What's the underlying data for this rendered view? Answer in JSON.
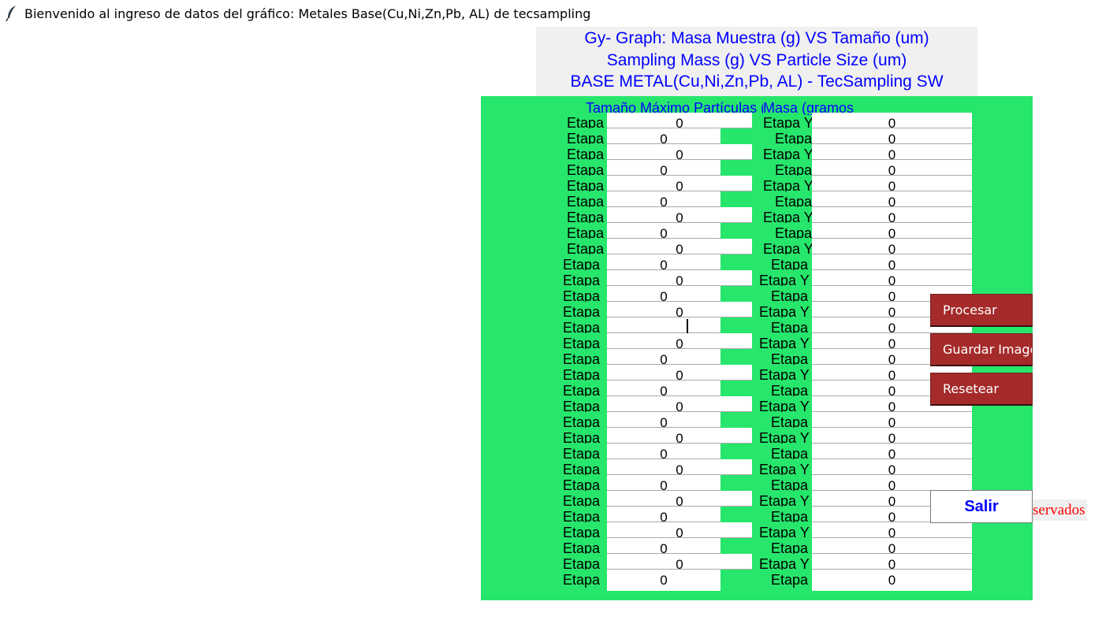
{
  "window": {
    "title": "Bienvenido al ingreso de datos del gráfico: Metales Base(Cu,Ni,Zn,Pb, AL) de tecsampling",
    "icon": "feather-icon"
  },
  "header": {
    "line1": "Gy- Graph: Masa Muestra (g) VS Tamaño (um)",
    "line2": "Sampling Mass (g) VS Particle Size (um)",
    "line3": "BASE METAL(Cu,Ni,Zn,Pb, AL) - TecSampling SW"
  },
  "columns": {
    "size_header": "Tamaño Máximo Partículas (micro",
    "mass_header": "Masa (gramos"
  },
  "rows": [
    {
      "x_label": "Etapa",
      "x_value": "0",
      "y_label": "Etapa Y",
      "y_value": "0"
    },
    {
      "x_label": "Etapa",
      "x_value": "0",
      "y_label": "Etapa",
      "y_value": "0"
    },
    {
      "x_label": "Etapa",
      "x_value": "0",
      "y_label": "Etapa Y",
      "y_value": "0"
    },
    {
      "x_label": "Etapa",
      "x_value": "0",
      "y_label": "Etapa",
      "y_value": "0"
    },
    {
      "x_label": "Etapa",
      "x_value": "0",
      "y_label": "Etapa Y",
      "y_value": "0"
    },
    {
      "x_label": "Etapa",
      "x_value": "0",
      "y_label": "Etapa",
      "y_value": "0"
    },
    {
      "x_label": "Etapa",
      "x_value": "0",
      "y_label": "Etapa Y",
      "y_value": "0"
    },
    {
      "x_label": "Etapa",
      "x_value": "0",
      "y_label": "Etapa",
      "y_value": "0"
    },
    {
      "x_label": "Etapa",
      "x_value": "0",
      "y_label": "Etapa Y",
      "y_value": "0"
    },
    {
      "x_label": "Etapa",
      "x_value": "0",
      "y_label": "Etapa",
      "y_value": "0"
    },
    {
      "x_label": "Etapa",
      "x_value": "0",
      "y_label": "Etapa Y",
      "y_value": "0"
    },
    {
      "x_label": "Etapa",
      "x_value": "0",
      "y_label": "Etapa",
      "y_value": "0"
    },
    {
      "x_label": "Etapa",
      "x_value": "0",
      "y_label": "Etapa Y",
      "y_value": "0"
    },
    {
      "x_label": "Etapa",
      "x_value": "",
      "y_label": "Etapa",
      "y_value": "0",
      "focused": true
    },
    {
      "x_label": "Etapa",
      "x_value": "0",
      "y_label": "Etapa Y",
      "y_value": "0"
    },
    {
      "x_label": "Etapa",
      "x_value": "0",
      "y_label": "Etapa",
      "y_value": "0"
    },
    {
      "x_label": "Etapa",
      "x_value": "0",
      "y_label": "Etapa Y",
      "y_value": "0"
    },
    {
      "x_label": "Etapa",
      "x_value": "0",
      "y_label": "Etapa",
      "y_value": "0"
    },
    {
      "x_label": "Etapa",
      "x_value": "0",
      "y_label": "Etapa Y",
      "y_value": "0"
    },
    {
      "x_label": "Etapa",
      "x_value": "0",
      "y_label": "Etapa",
      "y_value": "0"
    },
    {
      "x_label": "Etapa",
      "x_value": "0",
      "y_label": "Etapa Y",
      "y_value": "0"
    },
    {
      "x_label": "Etapa",
      "x_value": "0",
      "y_label": "Etapa",
      "y_value": "0"
    },
    {
      "x_label": "Etapa",
      "x_value": "0",
      "y_label": "Etapa Y",
      "y_value": "0"
    },
    {
      "x_label": "Etapa",
      "x_value": "0",
      "y_label": "Etapa",
      "y_value": "0"
    },
    {
      "x_label": "Etapa",
      "x_value": "0",
      "y_label": "Etapa Y",
      "y_value": "0"
    },
    {
      "x_label": "Etapa",
      "x_value": "0",
      "y_label": "Etapa",
      "y_value": "0"
    },
    {
      "x_label": "Etapa",
      "x_value": "0",
      "y_label": "Etapa Y",
      "y_value": "0"
    },
    {
      "x_label": "Etapa",
      "x_value": "0",
      "y_label": "Etapa",
      "y_value": "0"
    },
    {
      "x_label": "Etapa",
      "x_value": "0",
      "y_label": "Etapa Y",
      "y_value": "0"
    },
    {
      "x_label": "Etapa",
      "x_value": "0",
      "y_label": "Etapa",
      "y_value": "0"
    }
  ],
  "buttons": {
    "procesar": "Procesar",
    "guardar": "Guardar Imagen",
    "resetear": "Resetear",
    "salir": "Salir"
  },
  "footer": {
    "rights_fragment": "servados"
  },
  "colors": {
    "panel_green": "#27e66c",
    "button_red": "#a52a2a",
    "header_blue": "#0000ff",
    "footer_red": "#ff0000"
  }
}
